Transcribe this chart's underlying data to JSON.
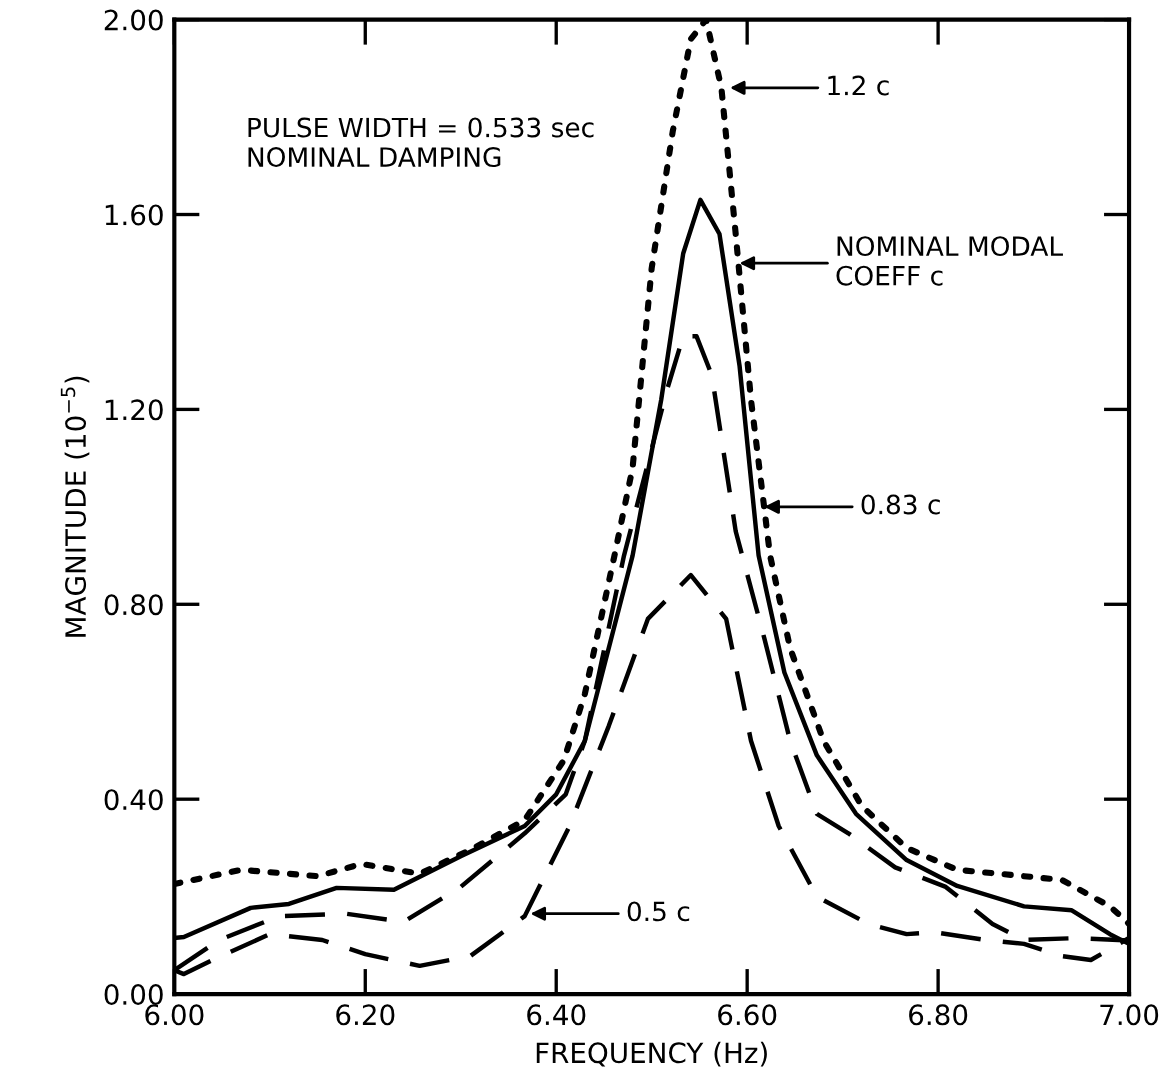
{
  "chart_data": {
    "type": "line",
    "xlabel": "FREQUENCY (Hz)",
    "ylabel": "MAGNITUDE (10$^{−5}$)",
    "xlim": [
      6.0,
      7.0
    ],
    "ylim": [
      0.0,
      2.0
    ],
    "xticks": [
      {
        "value": 6.0,
        "label": "6.00"
      },
      {
        "value": 6.2,
        "label": "6.20"
      },
      {
        "value": 6.4,
        "label": "6.40"
      },
      {
        "value": 6.6,
        "label": "6.60"
      },
      {
        "value": 6.8,
        "label": "6.80"
      },
      {
        "value": 7.0,
        "label": "7.00"
      }
    ],
    "yticks": [
      {
        "value": 0.0,
        "label": "0.00"
      },
      {
        "value": 0.4,
        "label": "0.40"
      },
      {
        "value": 0.8,
        "label": "0.80"
      },
      {
        "value": 1.2,
        "label": "1.20"
      },
      {
        "value": 1.6,
        "label": "1.60"
      },
      {
        "value": 2.0,
        "label": "2.00"
      }
    ],
    "grid": false,
    "legend": false,
    "marker": "none",
    "series": [
      {
        "color": "#000000",
        "line_style": "dotted",
        "x": [
          6.0,
          6.07,
          6.15,
          6.196,
          6.257,
          6.31,
          6.367,
          6.408,
          6.43,
          6.461,
          6.48,
          6.5,
          6.522,
          6.541,
          6.557,
          6.573,
          6.588,
          6.604,
          6.624,
          6.645,
          6.68,
          6.72,
          6.767,
          6.82,
          6.89,
          6.93,
          6.98,
          7.0
        ],
        "values": [
          0.226,
          0.255,
          0.242,
          0.267,
          0.247,
          0.296,
          0.357,
          0.48,
          0.616,
          0.9,
          1.08,
          1.49,
          1.77,
          1.96,
          2.0,
          1.86,
          1.56,
          1.22,
          0.9,
          0.71,
          0.52,
          0.386,
          0.3,
          0.255,
          0.242,
          0.234,
          0.18,
          0.144
        ]
      },
      {
        "color": "#000000",
        "line_style": "solid",
        "x": [
          6.0,
          6.01,
          6.08,
          6.12,
          6.17,
          6.23,
          6.3,
          6.367,
          6.4,
          6.43,
          6.48,
          6.51,
          6.533,
          6.551,
          6.571,
          6.592,
          6.612,
          6.639,
          6.673,
          6.714,
          6.767,
          6.82,
          6.89,
          6.94,
          6.98,
          7.0
        ],
        "values": [
          0.115,
          0.117,
          0.177,
          0.185,
          0.218,
          0.214,
          0.283,
          0.345,
          0.41,
          0.52,
          0.9,
          1.22,
          1.52,
          1.63,
          1.56,
          1.29,
          0.9,
          0.66,
          0.49,
          0.37,
          0.275,
          0.222,
          0.18,
          0.172,
          0.123,
          0.103
        ]
      },
      {
        "color": "#000000",
        "line_style": "dashed",
        "x": [
          6.0,
          6.047,
          6.11,
          6.18,
          6.24,
          6.3,
          6.367,
          6.41,
          6.43,
          6.471,
          6.516,
          6.533,
          6.547,
          6.563,
          6.588,
          6.618,
          6.645,
          6.673,
          6.706,
          6.755,
          6.808,
          6.857,
          6.89,
          6.945,
          7.0
        ],
        "values": [
          0.049,
          0.111,
          0.16,
          0.165,
          0.148,
          0.22,
          0.33,
          0.41,
          0.52,
          0.9,
          1.24,
          1.35,
          1.35,
          1.27,
          0.95,
          0.73,
          0.52,
          0.37,
          0.33,
          0.26,
          0.22,
          0.144,
          0.111,
          0.115,
          0.11
        ]
      },
      {
        "color": "#000000",
        "line_style": "dashed",
        "x": [
          6.0,
          6.01,
          6.04,
          6.1,
          6.155,
          6.2,
          6.257,
          6.31,
          6.367,
          6.414,
          6.455,
          6.496,
          6.541,
          6.578,
          6.604,
          6.633,
          6.673,
          6.727,
          6.767,
          6.796,
          6.85,
          6.89,
          6.93,
          6.96,
          7.0
        ],
        "values": [
          0.049,
          0.041,
          0.07,
          0.123,
          0.111,
          0.082,
          0.058,
          0.078,
          0.16,
          0.345,
          0.55,
          0.77,
          0.86,
          0.77,
          0.52,
          0.345,
          0.2,
          0.144,
          0.123,
          0.127,
          0.111,
          0.103,
          0.078,
          0.07,
          0.115
        ]
      }
    ],
    "annotations": [
      "PULSE WIDTH = 0.533 sec\nNOMINAL DAMPING",
      "1.2 c",
      "NOMINAL MODAL\nCOEFF c",
      "0.83 c",
      "0.5 c"
    ]
  }
}
